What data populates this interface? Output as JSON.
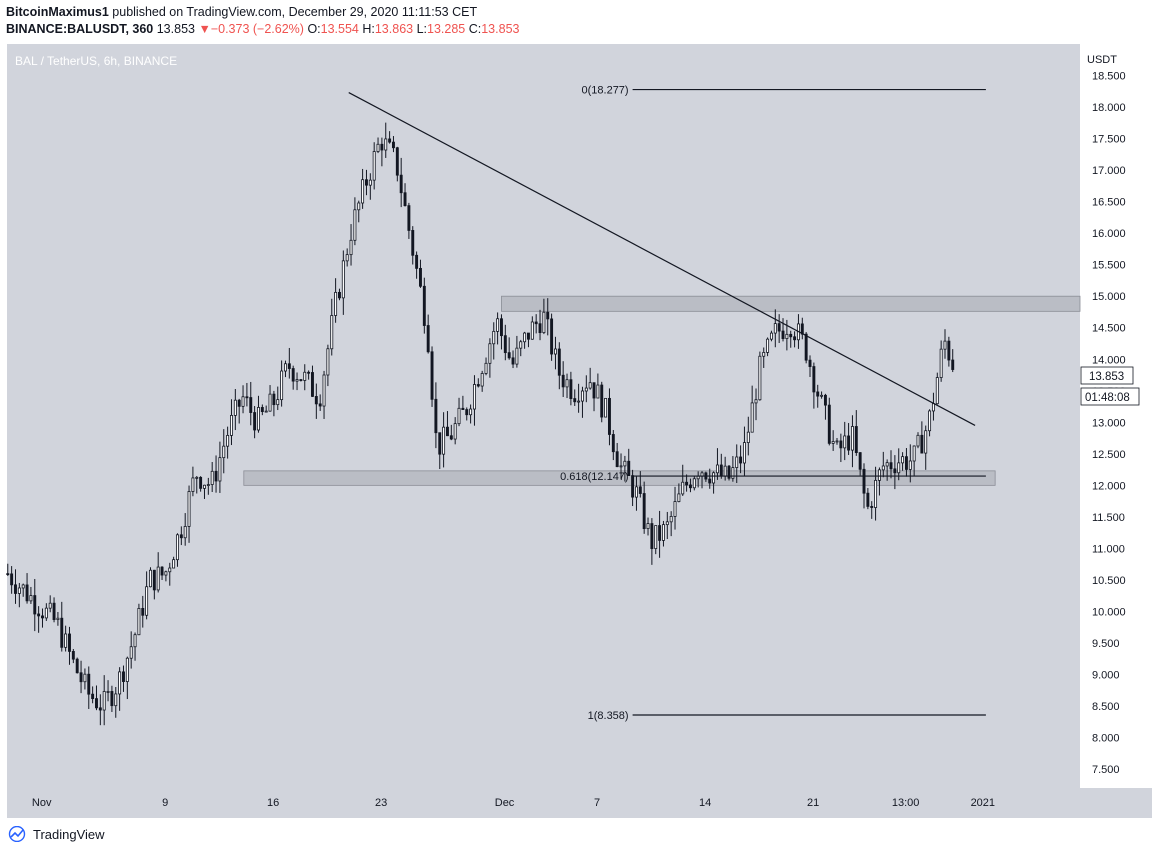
{
  "header": {
    "author": "BitcoinMaximus1",
    "published": "published on TradingView.com, December 29, 2020 11:11:53 CET",
    "symbol": "BINANCE:BALUSDT, 360",
    "last": "13.853",
    "change_arrow": "▼",
    "change": "−0.373 (−2.62%)",
    "open_label": "O:",
    "open": "13.554",
    "high_label": "H:",
    "high": "13.863",
    "low_label": "L:",
    "low": "13.285",
    "close_label": "C:",
    "close": "13.853"
  },
  "footer": {
    "brand": "TradingView",
    "logo_icon": "tradingview-logo-icon"
  },
  "colors": {
    "background": "#d1d4dc",
    "axis_background": "#ffffff",
    "candle": "#131722",
    "zone_fill": "#b2b5be",
    "down_red": "#ef5350"
  },
  "chart_data": {
    "type": "candlestick",
    "title": "BAL / TetherUS, 6h, BINANCE",
    "currency": "USDT",
    "last_price": "13.853",
    "countdown": "01:48:08",
    "ylim": [
      7.2,
      19.0
    ],
    "y_ticks": [
      "7.500",
      "8.000",
      "8.500",
      "9.000",
      "9.500",
      "10.000",
      "10.500",
      "11.000",
      "11.500",
      "12.000",
      "12.500",
      "13.000",
      "13.500",
      "14.000",
      "14.500",
      "15.000",
      "15.500",
      "16.000",
      "16.500",
      "17.000",
      "17.500",
      "18.000",
      "18.500"
    ],
    "x_ticks": [
      {
        "label": "Nov",
        "day": 1
      },
      {
        "label": "9",
        "day": 9
      },
      {
        "label": "16",
        "day": 16
      },
      {
        "label": "23",
        "day": 23
      },
      {
        "label": "Dec",
        "day": 31
      },
      {
        "label": "7",
        "day": 37
      },
      {
        "label": "14",
        "day": 44
      },
      {
        "label": "21",
        "day": 51
      },
      {
        "label": "13:00",
        "day": 57
      },
      {
        "label": "2021",
        "day": 62
      }
    ],
    "xlim_days": [
      -1.25,
      68.3
    ],
    "price_path": [
      [
        -1.2,
        10.6
      ],
      [
        0,
        10.3
      ],
      [
        2,
        9.8
      ],
      [
        3,
        9.2
      ],
      [
        4,
        8.7
      ],
      [
        5,
        8.5
      ],
      [
        6,
        8.9
      ],
      [
        7,
        9.6
      ],
      [
        8,
        10.5
      ],
      [
        9,
        10.6
      ],
      [
        10,
        11.3
      ],
      [
        11,
        12.2
      ],
      [
        12,
        12.0
      ],
      [
        13,
        12.8
      ],
      [
        14,
        13.4
      ],
      [
        15,
        13.0
      ],
      [
        16,
        13.3
      ],
      [
        17,
        13.9
      ],
      [
        18,
        13.7
      ],
      [
        19,
        13.4
      ],
      [
        20,
        14.8
      ],
      [
        21,
        16.0
      ],
      [
        22,
        16.8
      ],
      [
        23,
        17.5
      ],
      [
        24,
        17.1
      ],
      [
        25,
        15.8
      ],
      [
        26,
        14.5
      ],
      [
        26.6,
        12.6
      ],
      [
        27.5,
        12.8
      ],
      [
        28.5,
        13.2
      ],
      [
        29.5,
        13.9
      ],
      [
        30.5,
        14.6
      ],
      [
        31.5,
        13.9
      ],
      [
        32.5,
        14.4
      ],
      [
        33.5,
        14.7
      ],
      [
        34.5,
        13.8
      ],
      [
        35.5,
        13.5
      ],
      [
        36.5,
        13.7
      ],
      [
        37.5,
        13.2
      ],
      [
        38.5,
        12.3
      ],
      [
        39.5,
        11.9
      ],
      [
        40.5,
        11.1
      ],
      [
        41.5,
        11.3
      ],
      [
        42.5,
        11.9
      ],
      [
        43.5,
        12.3
      ],
      [
        44.5,
        12.2
      ],
      [
        45.5,
        12.1
      ],
      [
        46.5,
        12.5
      ],
      [
        47.5,
        13.8
      ],
      [
        48.5,
        14.4
      ],
      [
        49.5,
        14.6
      ],
      [
        50.5,
        14.2
      ],
      [
        51.5,
        13.3
      ],
      [
        52.5,
        12.5
      ],
      [
        53.5,
        12.8
      ],
      [
        54.5,
        11.6
      ],
      [
        55.5,
        12.3
      ],
      [
        56.5,
        12.4
      ],
      [
        57.5,
        12.4
      ],
      [
        58.5,
        13.0
      ],
      [
        59.5,
        14.3
      ],
      [
        60.2,
        13.85
      ]
    ],
    "annotations": {
      "trendline": {
        "from": {
          "day": 20.9,
          "price": 18.23
        },
        "to": {
          "day": 61.5,
          "price": 12.95
        }
      },
      "resistance_zone": {
        "from_day": 30.8,
        "to_day": 68.3,
        "low": 14.76,
        "high": 15.0
      },
      "support_zone": {
        "from_day": 14.1,
        "to_day": 62.8,
        "low": 12.0,
        "high": 12.23
      },
      "fib_levels": [
        {
          "label": "0(18.277)",
          "price": 18.277
        },
        {
          "label": "0.618(12.147)",
          "price": 12.147
        },
        {
          "label": "1(8.358)",
          "price": 8.358
        }
      ],
      "fib_from_day": 39.3,
      "fib_to_day": 62.2
    }
  }
}
